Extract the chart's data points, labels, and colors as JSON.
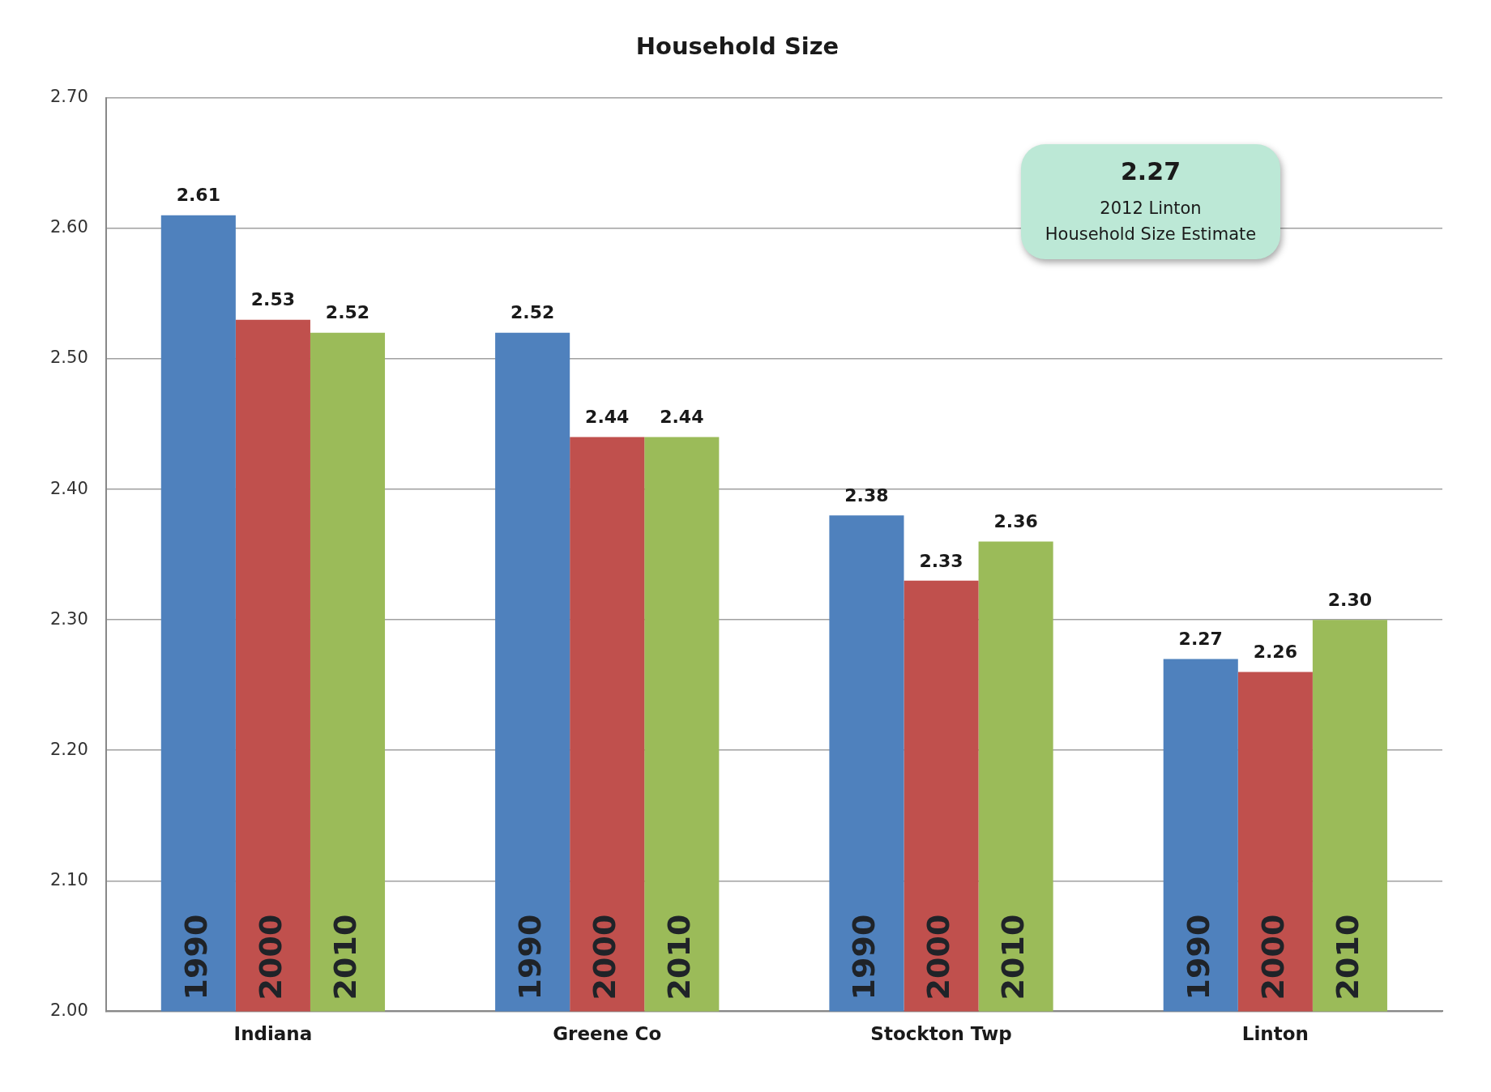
{
  "chart_data": {
    "type": "bar",
    "title": "Household Size",
    "categories": [
      "Indiana",
      "Greene Co",
      "Stockton Twp",
      "Linton"
    ],
    "series": [
      {
        "name": "1990",
        "color": "#4f81bd",
        "values": [
          2.61,
          2.52,
          2.38,
          2.27
        ],
        "value_labels": [
          "2.61",
          "2.52",
          "2.38",
          "2.27"
        ]
      },
      {
        "name": "2000",
        "color": "#c0504d",
        "values": [
          2.53,
          2.44,
          2.33,
          2.26
        ],
        "value_labels": [
          "2.53",
          "2.44",
          "2.33",
          "2.26"
        ]
      },
      {
        "name": "2010",
        "color": "#9bbb59",
        "values": [
          2.52,
          2.44,
          2.36,
          2.3
        ],
        "value_labels": [
          "2.52",
          "2.44",
          "2.36",
          "2.30"
        ]
      }
    ],
    "ylim": [
      2.0,
      2.7
    ],
    "yticks": [
      {
        "value": 2.0,
        "label": "2.00"
      },
      {
        "value": 2.1,
        "label": "2.10"
      },
      {
        "value": 2.2,
        "label": "2.20"
      },
      {
        "value": 2.3,
        "label": "2.30"
      },
      {
        "value": 2.4,
        "label": "2.40"
      },
      {
        "value": 2.5,
        "label": "2.50"
      },
      {
        "value": 2.6,
        "label": "2.60"
      },
      {
        "value": 2.7,
        "label": "2.70"
      }
    ],
    "grid": "y",
    "legend": false,
    "annotations": [
      "2.27",
      "2012 Linton\nHousehold Size Estimate"
    ]
  }
}
